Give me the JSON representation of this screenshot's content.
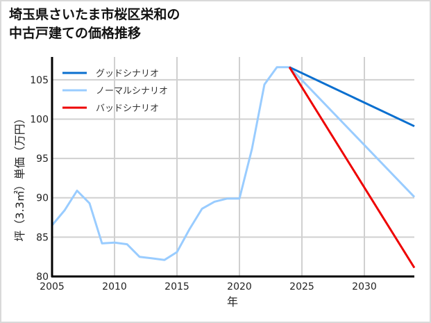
{
  "title_lines": [
    "埼玉県さいたま市桜区栄和の",
    "中古戸建ての価格推移"
  ],
  "chart_data": {
    "type": "line",
    "title": "埼玉県さいたま市桜区栄和の中古戸建ての価格推移",
    "xlabel": "年",
    "ylabel": "坪（3.3㎡）単価（万円）",
    "xlim": [
      2005,
      2034
    ],
    "ylim": [
      80,
      107.9
    ],
    "xticks": [
      2005,
      2010,
      2015,
      2020,
      2025,
      2030
    ],
    "yticks": [
      80,
      85,
      90,
      95,
      100,
      105
    ],
    "grid": true,
    "legend_position": "upper left",
    "series": [
      {
        "name": "グッドシナリオ",
        "color": "#0a6fcf",
        "x": [
          2024,
          2034
        ],
        "values": [
          106.6,
          99.1
        ]
      },
      {
        "name": "ノーマルシナリオ",
        "color": "#99ccff",
        "x": [
          2005,
          2006,
          2007,
          2008,
          2009,
          2010,
          2011,
          2012,
          2013,
          2014,
          2015,
          2016,
          2017,
          2018,
          2019,
          2020,
          2021,
          2022,
          2023,
          2024,
          2034
        ],
        "values": [
          86.5,
          88.4,
          90.9,
          89.3,
          84.2,
          84.3,
          84.1,
          82.5,
          82.3,
          82.1,
          83.1,
          86.0,
          88.6,
          89.5,
          89.9,
          89.9,
          96.2,
          104.4,
          106.6,
          106.6,
          90.1
        ]
      },
      {
        "name": "バッドシナリオ",
        "color": "#ee0000",
        "x": [
          2024,
          2034
        ],
        "values": [
          106.6,
          81.1
        ]
      }
    ]
  }
}
